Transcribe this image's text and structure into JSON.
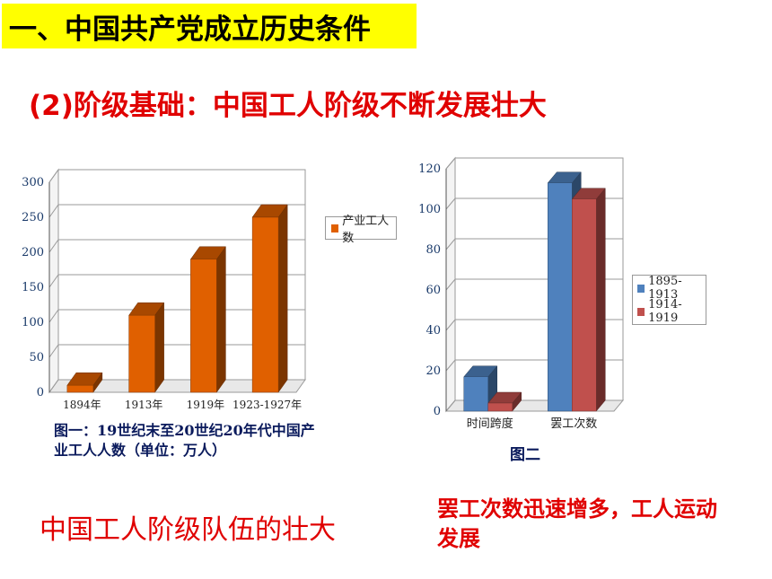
{
  "header": {
    "title": "一、中国共产党成立历史条件",
    "subtitle": "(2)阶级基础：中国工人阶级不断发展壮大"
  },
  "chart_data": [
    {
      "type": "bar",
      "title": "",
      "categories": [
        "1894年",
        "1913年",
        "1919年",
        "1923-1927年"
      ],
      "series": [
        {
          "name": "产业工人数",
          "color": "#e06000",
          "values": [
            10,
            110,
            190,
            250
          ]
        }
      ],
      "ylim": [
        0,
        300
      ],
      "yticks": [
        "0",
        "50",
        "100",
        "150",
        "200",
        "250",
        "300"
      ],
      "caption": "图一：19世纪末至20世纪20年代中国产业工人人数（单位：万人）",
      "legend_position": "right"
    },
    {
      "type": "bar",
      "title": "",
      "categories": [
        "时间跨度",
        "罢工次数"
      ],
      "series": [
        {
          "name": "1895-1913",
          "color": "#4f81bd",
          "values": [
            17,
            113
          ]
        },
        {
          "name": "1914-1919",
          "color": "#c0504d",
          "values": [
            4,
            105
          ]
        }
      ],
      "ylim": [
        0,
        120
      ],
      "yticks": [
        "0",
        "20",
        "40",
        "60",
        "80",
        "100",
        "120"
      ],
      "caption": "图二",
      "legend_position": "right"
    }
  ],
  "conclusions": {
    "left": "中国工人阶级队伍的壮大",
    "right": "罢工次数迅速增多，工人运动发展"
  }
}
